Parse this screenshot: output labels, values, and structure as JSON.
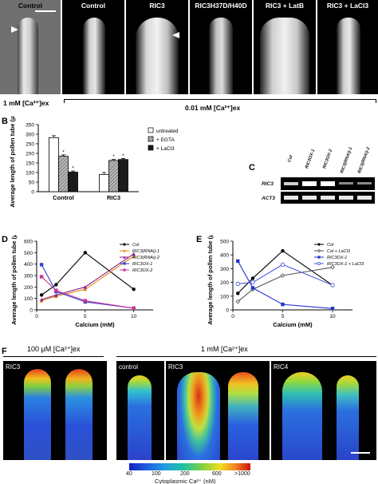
{
  "panel_labels": {
    "A": "A",
    "B": "B",
    "C": "C",
    "D": "D",
    "E": "E",
    "F": "F"
  },
  "panel_a": {
    "images": [
      "Control",
      "Control",
      "RIC3",
      "RIC3H37D/H40D",
      "RIC3 + LatB",
      "RIC3 + LaCl3"
    ],
    "cond_1": "1 mM [Ca²⁺]ex",
    "cond_2": "0.01 mM [Ca²⁺]ex"
  },
  "panel_c": {
    "lanes": [
      "Col",
      "RIC3OX-1",
      "RIC3OX-2",
      "RIC3(RNAi)-1",
      "RIC3(RNAi)-2"
    ],
    "rows": [
      "RIC3",
      "ACT3"
    ]
  },
  "panel_f": {
    "cond_1": "100 μM [Ca²⁺]ex",
    "cond_2": "1 mM [Ca²⁺]ex",
    "image_labels": [
      "RIC3",
      "control",
      "RIC3",
      "RIC4"
    ],
    "colorbar_ticks": [
      "40",
      "100",
      "200",
      "600",
      ">1000"
    ],
    "colorbar_title": "Cytoplasmic Ca²⁺ (nM)"
  },
  "chart_data": [
    {
      "type": "bar",
      "panel": "B",
      "categories": [
        "Control",
        "RIC3"
      ],
      "series": [
        {
          "name": "untreated",
          "values": [
            282,
            90
          ],
          "errors": [
            10,
            10
          ],
          "color": "#ffffff"
        },
        {
          "name": "+ EGTA",
          "values": [
            185,
            163
          ],
          "errors": [
            7,
            5
          ],
          "color": "#9a9a9a"
        },
        {
          "name": "+ LaCl3",
          "values": [
            102,
            168
          ],
          "errors": [
            6,
            5
          ],
          "color": "#1a1a1a"
        }
      ],
      "asterisks": [
        "",
        "*",
        "*",
        "",
        "*",
        "*"
      ],
      "ylabel": "Average length of pollen tube (μm)",
      "ylim": [
        0,
        350
      ],
      "yticks": [
        0,
        50,
        100,
        150,
        200,
        250,
        300,
        350
      ]
    },
    {
      "type": "line",
      "panel": "D",
      "x": [
        0.5,
        2,
        5,
        10
      ],
      "series": [
        {
          "name": "Col",
          "values": [
            130,
            220,
            500,
            180
          ],
          "color": "#000000",
          "marker": "circle"
        },
        {
          "name": "RIC3(RNAi)-1",
          "values": [
            80,
            120,
            180,
            470
          ],
          "color": "#e08a1a",
          "marker": "triangle"
        },
        {
          "name": "RIC3(RNAi)-2",
          "values": [
            90,
            130,
            200,
            490
          ],
          "color": "#8a1e8a",
          "marker": "triangle"
        },
        {
          "name": "RIC3OX-1",
          "values": [
            395,
            160,
            70,
            15
          ],
          "color": "#3344cc",
          "marker": "square"
        },
        {
          "name": "RIC3OX-2",
          "values": [
            290,
            170,
            80,
            15
          ],
          "color": "#cc3399",
          "marker": "square"
        }
      ],
      "xlabel": "Calcium (mM)",
      "ylabel": "Average length of pollen tube (μm)",
      "xlim": [
        0,
        12
      ],
      "xticks": [
        0,
        5,
        10
      ],
      "ylim": [
        0,
        600
      ],
      "yticks": [
        0,
        100,
        200,
        300,
        400,
        500,
        600
      ]
    },
    {
      "type": "line",
      "panel": "E",
      "x": [
        0.5,
        2,
        5,
        10
      ],
      "series": [
        {
          "name": "Col",
          "values": [
            120,
            230,
            430,
            180
          ],
          "color": "#000000",
          "marker": "circle"
        },
        {
          "name": "Col + LaCl3",
          "values": [
            60,
            150,
            250,
            310
          ],
          "color": "#555555",
          "marker": "diamond"
        },
        {
          "name": "RIC3OX-1",
          "values": [
            355,
            160,
            40,
            10
          ],
          "color": "#2233cc",
          "marker": "square"
        },
        {
          "name": "RIC3OX-1 + LaCl3",
          "values": [
            190,
            200,
            330,
            180
          ],
          "color": "#4a5ad8",
          "marker": "circle-open"
        }
      ],
      "xlabel": "Calcium (mM)",
      "ylabel": "Average length of pollen tube (μm)",
      "xlim": [
        0,
        12
      ],
      "xticks": [
        0,
        5,
        10
      ],
      "ylim": [
        0,
        500
      ],
      "yticks": [
        0,
        100,
        200,
        300,
        400,
        500
      ]
    }
  ]
}
